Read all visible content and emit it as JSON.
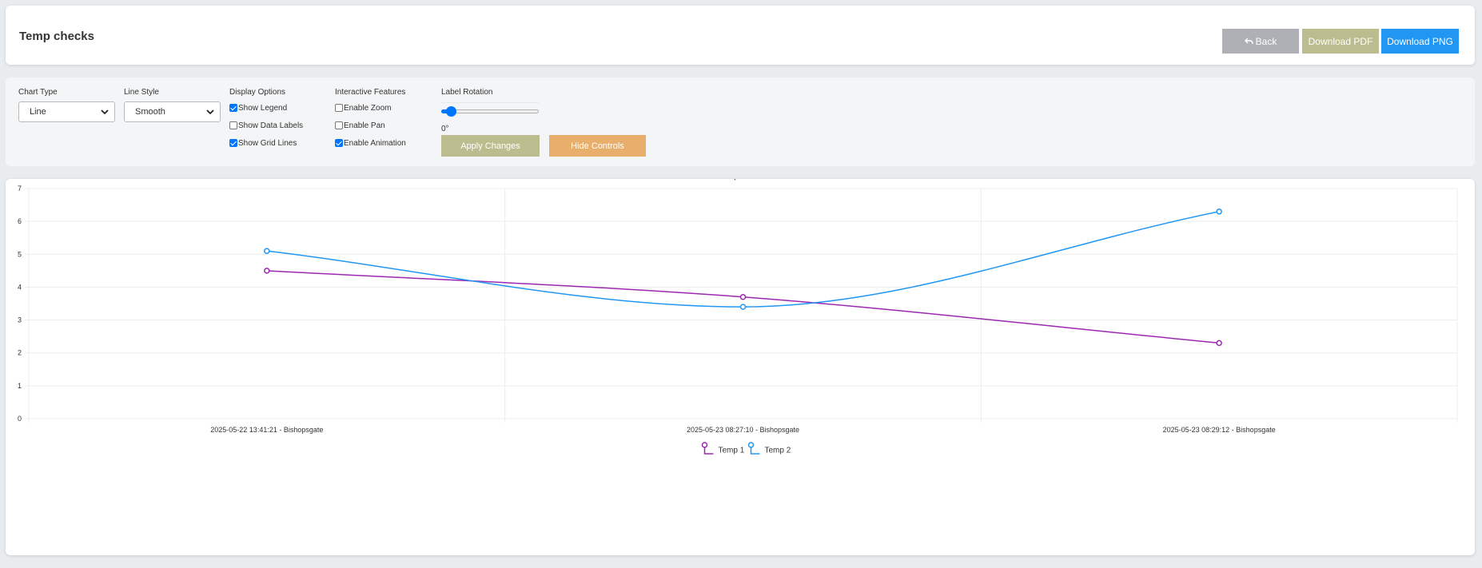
{
  "header": {
    "title": "Temp checks",
    "back_label": "Back",
    "download_pdf_label": "Download PDF",
    "download_png_label": "Download PNG"
  },
  "controls": {
    "chart_type": {
      "label": "Chart Type",
      "value": "Line"
    },
    "line_style": {
      "label": "Line Style",
      "value": "Smooth"
    },
    "display_options": {
      "label": "Display Options",
      "items": [
        {
          "label": "Show Legend",
          "checked": true
        },
        {
          "label": "Show Data Labels",
          "checked": false
        },
        {
          "label": "Show Grid Lines",
          "checked": true
        }
      ]
    },
    "interactive_features": {
      "label": "Interactive Features",
      "items": [
        {
          "label": "Enable Zoom",
          "checked": false
        },
        {
          "label": "Enable Pan",
          "checked": false
        },
        {
          "label": "Enable Animation",
          "checked": true
        }
      ]
    },
    "label_rotation": {
      "label": "Label Rotation",
      "value": "0°",
      "fraction": 0.1
    },
    "apply_label": "Apply Changes",
    "hide_label": "Hide Controls"
  },
  "colors": {
    "back": "#aeb0b5",
    "download_pdf": "#bcbd8e",
    "download_png": "#2196f3",
    "apply": "#bcbd8e",
    "hide": "#e8ae6c"
  },
  "chart_data": {
    "type": "line",
    "title": "Temp checks",
    "categories": [
      "2025-05-22 13:41:21 - Bishopsgate",
      "2025-05-23 08:27:10 - Bishopsgate",
      "2025-05-23 08:29:12 - Bishopsgate"
    ],
    "series": [
      {
        "name": "Temp 1",
        "values": [
          4.5,
          3.7,
          2.3
        ],
        "color": "#9c27b0"
      },
      {
        "name": "Temp 2",
        "values": [
          5.1,
          3.4,
          6.3
        ],
        "color": "#2196f3"
      }
    ],
    "ylim": [
      0,
      7
    ],
    "yticks": [
      "0",
      "1",
      "2",
      "3",
      "4",
      "5",
      "6",
      "7"
    ],
    "grid": true,
    "legend": "bottom-center",
    "line_style": "smooth"
  }
}
